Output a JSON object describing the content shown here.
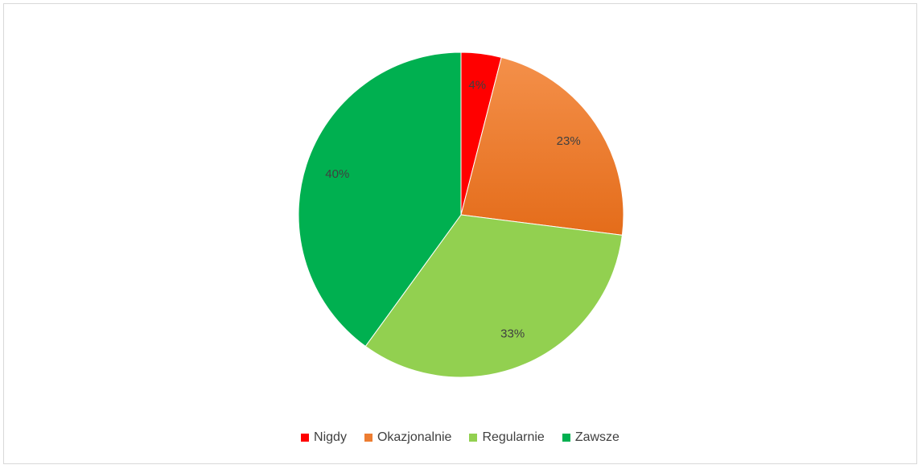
{
  "chart_data": {
    "type": "pie",
    "categories": [
      "Nigdy",
      "Okazjonalnie",
      "Regularnie",
      "Zawsze"
    ],
    "values": [
      4,
      23,
      33,
      40
    ],
    "data_labels": [
      "4%",
      "23%",
      "33%",
      "40%"
    ],
    "colors": [
      "#ff0000",
      "#ed7d31",
      "#92d050",
      "#00b050"
    ],
    "start_angle_deg": 0,
    "direction": "clockwise",
    "legend_position": "bottom"
  }
}
